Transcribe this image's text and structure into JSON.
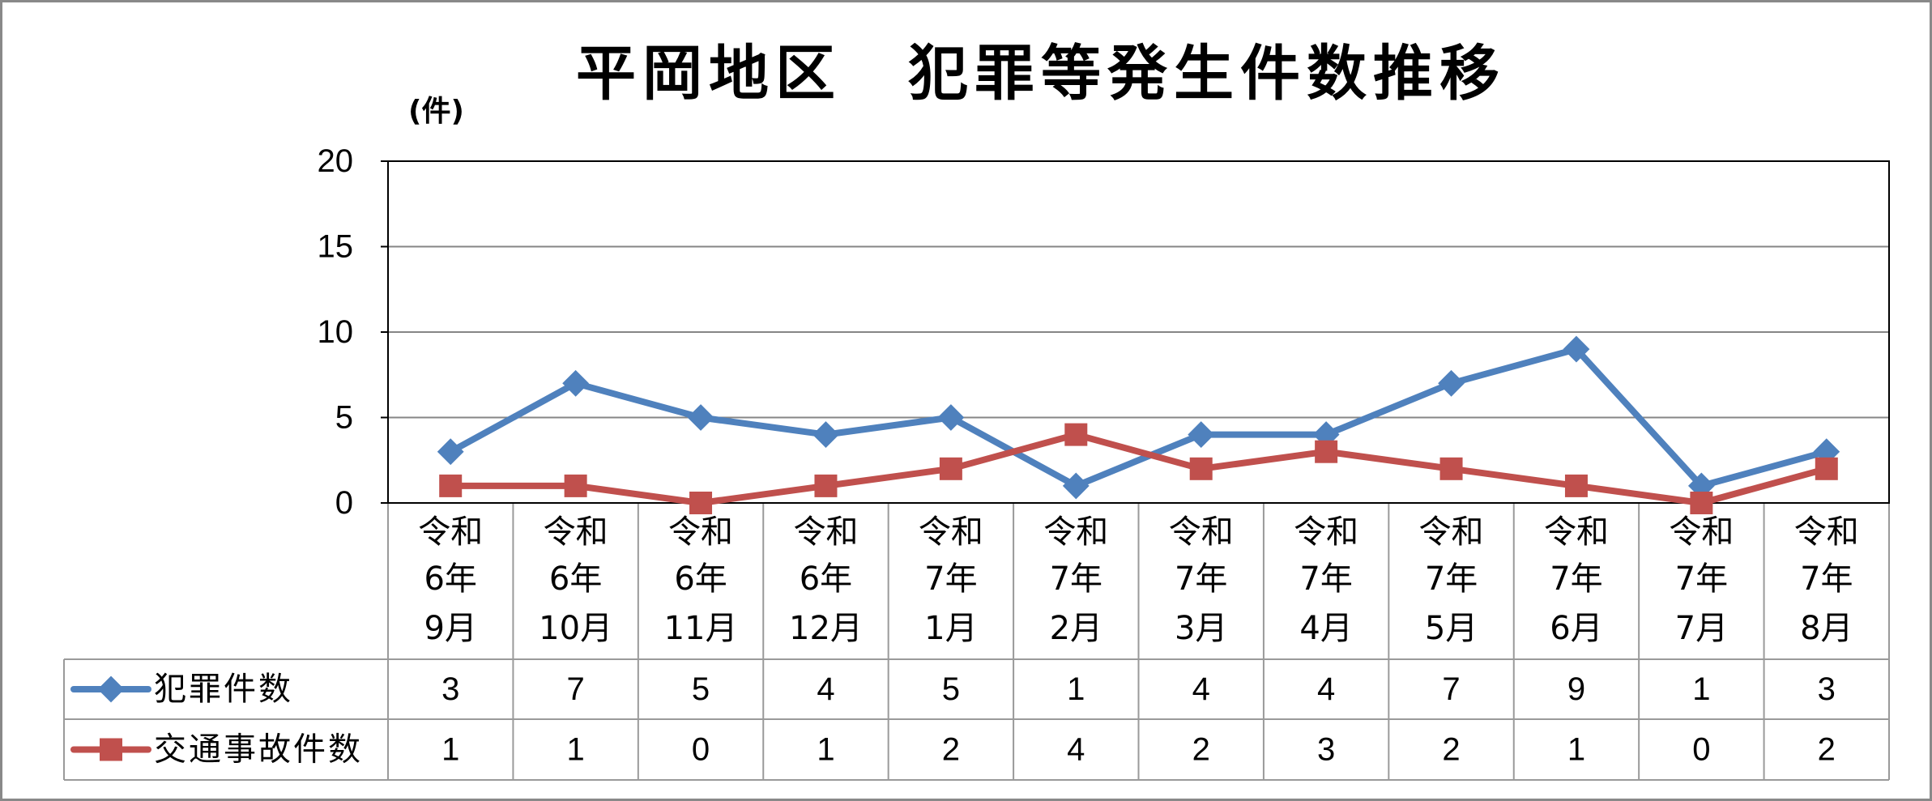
{
  "chart_data": {
    "type": "line",
    "title": "平岡地区　犯罪等発生件数推移",
    "ylabel": "(件)",
    "categories": [
      "令和6年9月",
      "令和6年10月",
      "令和6年11月",
      "令和6年12月",
      "令和7年1月",
      "令和7年2月",
      "令和7年3月",
      "令和7年4月",
      "令和7年5月",
      "令和7年6月",
      "令和7年7月",
      "令和7年8月"
    ],
    "ylim": [
      0,
      20
    ],
    "yticks": [
      0,
      5,
      10,
      15,
      20
    ],
    "grid": true,
    "legend": "bottom",
    "data_table": true,
    "series": [
      {
        "name": "犯罪件数",
        "values": [
          3,
          7,
          5,
          4,
          5,
          1,
          4,
          4,
          7,
          9,
          1,
          3
        ],
        "color": "#4F81BD",
        "marker": "diamond"
      },
      {
        "name": "交通事故件数",
        "values": [
          1,
          1,
          0,
          1,
          2,
          4,
          2,
          3,
          2,
          1,
          0,
          2
        ],
        "color": "#C0504D",
        "marker": "square"
      }
    ]
  }
}
